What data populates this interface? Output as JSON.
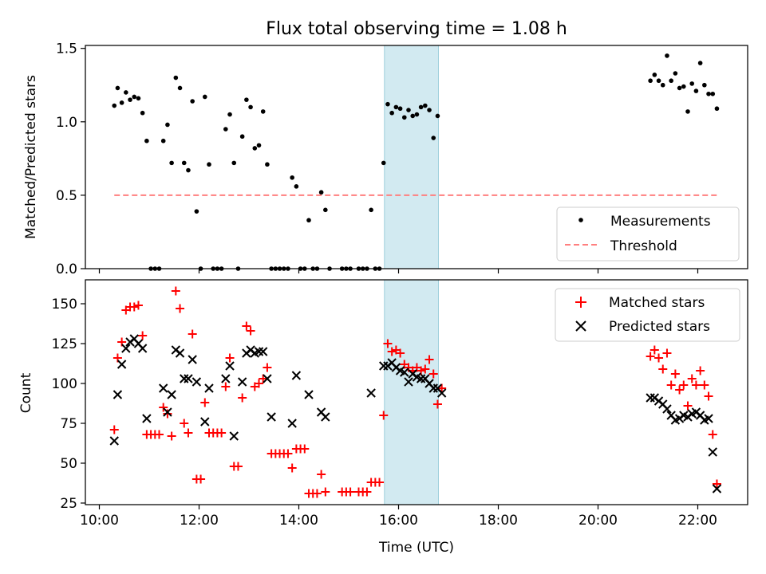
{
  "figure": {
    "title": "Flux total observing time = 1.08 h",
    "xlabel": "Time (UTC)"
  },
  "colors": {
    "measurement": "#000000",
    "threshold": "#ff7f7f",
    "matched": "#ff0000",
    "predicted": "#000000",
    "shade": "#add8e6"
  },
  "chart_data": [
    {
      "type": "scatter",
      "ylabel": "Matched/Predicted stars",
      "x_unit": "hours UTC",
      "xlim": [
        9.72,
        23.0
      ],
      "ylim": [
        0,
        1.52
      ],
      "yticks": [
        "0.0",
        "0.5",
        "1.0",
        "1.5"
      ],
      "ytick_values": [
        0,
        0.5,
        1.0,
        1.5
      ],
      "shaded_interval": [
        "15:43",
        "16:48"
      ],
      "legend_position": "lower right",
      "legend": [
        "Measurements",
        "Threshold"
      ],
      "threshold": {
        "name": "Threshold",
        "x": [
          "10:18",
          "22:24"
        ],
        "y": 0.5
      },
      "series": [
        {
          "name": "Measurements",
          "points": [
            [
              "10:18",
              1.11
            ],
            [
              "10:22",
              1.23
            ],
            [
              "10:27",
              1.13
            ],
            [
              "10:32",
              1.2
            ],
            [
              "10:37",
              1.15
            ],
            [
              "10:42",
              1.17
            ],
            [
              "10:47",
              1.16
            ],
            [
              "10:52",
              1.06
            ],
            [
              "10:57",
              0.87
            ],
            [
              "11:02",
              0.0
            ],
            [
              "11:07",
              0.0
            ],
            [
              "11:12",
              0.0
            ],
            [
              "11:17",
              0.87
            ],
            [
              "11:22",
              0.98
            ],
            [
              "11:27",
              0.72
            ],
            [
              "11:32",
              1.3
            ],
            [
              "11:37",
              1.23
            ],
            [
              "11:42",
              0.72
            ],
            [
              "11:47",
              0.67
            ],
            [
              "11:52",
              1.14
            ],
            [
              "11:57",
              0.39
            ],
            [
              "12:02",
              0.0
            ],
            [
              "12:07",
              1.17
            ],
            [
              "12:12",
              0.71
            ],
            [
              "12:17",
              0.0
            ],
            [
              "12:22",
              0.0
            ],
            [
              "12:27",
              0.0
            ],
            [
              "12:32",
              0.95
            ],
            [
              "12:37",
              1.05
            ],
            [
              "12:42",
              0.72
            ],
            [
              "12:47",
              0.0
            ],
            [
              "12:52",
              0.9
            ],
            [
              "12:57",
              1.15
            ],
            [
              "13:02",
              1.1
            ],
            [
              "13:07",
              0.82
            ],
            [
              "13:12",
              0.84
            ],
            [
              "13:17",
              1.07
            ],
            [
              "13:22",
              0.71
            ],
            [
              "13:27",
              0.0
            ],
            [
              "13:32",
              0.0
            ],
            [
              "13:37",
              0.0
            ],
            [
              "13:42",
              0.0
            ],
            [
              "13:47",
              0.0
            ],
            [
              "13:52",
              0.62
            ],
            [
              "13:57",
              0.56
            ],
            [
              "14:02",
              0.0
            ],
            [
              "14:07",
              0.0
            ],
            [
              "14:12",
              0.33
            ],
            [
              "14:17",
              0.0
            ],
            [
              "14:22",
              0.0
            ],
            [
              "14:27",
              0.52
            ],
            [
              "14:32",
              0.4
            ],
            [
              "14:37",
              0.0
            ],
            [
              "14:52",
              0.0
            ],
            [
              "14:57",
              0.0
            ],
            [
              "15:02",
              0.0
            ],
            [
              "15:12",
              0.0
            ],
            [
              "15:17",
              0.0
            ],
            [
              "15:22",
              0.0
            ],
            [
              "15:27",
              0.4
            ],
            [
              "15:32",
              0.0
            ],
            [
              "15:37",
              0.0
            ],
            [
              "15:42",
              0.72
            ],
            [
              "15:47",
              1.12
            ],
            [
              "15:52",
              1.06
            ],
            [
              "15:57",
              1.1
            ],
            [
              "16:02",
              1.09
            ],
            [
              "16:07",
              1.03
            ],
            [
              "16:12",
              1.08
            ],
            [
              "16:17",
              1.04
            ],
            [
              "16:22",
              1.05
            ],
            [
              "16:27",
              1.1
            ],
            [
              "16:32",
              1.11
            ],
            [
              "16:37",
              1.08
            ],
            [
              "16:42",
              0.89
            ],
            [
              "16:47",
              1.04
            ],
            [
              "21:03",
              1.28
            ],
            [
              "21:08",
              1.32
            ],
            [
              "21:13",
              1.28
            ],
            [
              "21:18",
              1.25
            ],
            [
              "21:23",
              1.45
            ],
            [
              "21:28",
              1.28
            ],
            [
              "21:33",
              1.33
            ],
            [
              "21:38",
              1.23
            ],
            [
              "21:43",
              1.24
            ],
            [
              "21:48",
              1.07
            ],
            [
              "21:53",
              1.26
            ],
            [
              "21:58",
              1.21
            ],
            [
              "22:03",
              1.4
            ],
            [
              "22:08",
              1.25
            ],
            [
              "22:13",
              1.19
            ],
            [
              "22:18",
              1.19
            ],
            [
              "22:23",
              1.09
            ]
          ]
        }
      ]
    },
    {
      "type": "scatter",
      "ylabel": "Count",
      "xlabel": "Time (UTC)",
      "x_unit": "hours UTC",
      "xlim": [
        9.72,
        23.0
      ],
      "ylim": [
        24,
        165
      ],
      "yticks": [
        "25",
        "50",
        "75",
        "100",
        "125",
        "150"
      ],
      "ytick_values": [
        25,
        50,
        75,
        100,
        125,
        150
      ],
      "xticks": [
        "10:00",
        "12:00",
        "14:00",
        "16:00",
        "18:00",
        "20:00",
        "22:00"
      ],
      "shaded_interval": [
        "15:43",
        "16:48"
      ],
      "legend_position": "upper right",
      "legend": [
        "Matched stars",
        "Predicted stars"
      ],
      "series": [
        {
          "name": "Matched stars",
          "marker": "+",
          "points": [
            [
              "10:18",
              71
            ],
            [
              "10:22",
              116
            ],
            [
              "10:27",
              126
            ],
            [
              "10:32",
              146
            ],
            [
              "10:37",
              148
            ],
            [
              "10:42",
              148
            ],
            [
              "10:47",
              149
            ],
            [
              "10:52",
              130
            ],
            [
              "10:57",
              68
            ],
            [
              "11:02",
              68
            ],
            [
              "11:07",
              68
            ],
            [
              "11:12",
              68
            ],
            [
              "11:17",
              85
            ],
            [
              "11:22",
              81
            ],
            [
              "11:27",
              67
            ],
            [
              "11:32",
              158
            ],
            [
              "11:37",
              147
            ],
            [
              "11:42",
              75
            ],
            [
              "11:47",
              69
            ],
            [
              "11:52",
              131
            ],
            [
              "11:57",
              40
            ],
            [
              "12:02",
              40
            ],
            [
              "12:07",
              88
            ],
            [
              "12:12",
              69
            ],
            [
              "12:17",
              69
            ],
            [
              "12:22",
              69
            ],
            [
              "12:27",
              69
            ],
            [
              "12:32",
              98
            ],
            [
              "12:37",
              116
            ],
            [
              "12:42",
              48
            ],
            [
              "12:47",
              48
            ],
            [
              "12:52",
              91
            ],
            [
              "12:57",
              136
            ],
            [
              "13:02",
              133
            ],
            [
              "13:07",
              98
            ],
            [
              "13:12",
              100
            ],
            [
              "13:17",
              103
            ],
            [
              "13:22",
              110
            ],
            [
              "13:27",
              56
            ],
            [
              "13:32",
              56
            ],
            [
              "13:37",
              56
            ],
            [
              "13:42",
              56
            ],
            [
              "13:47",
              56
            ],
            [
              "13:52",
              47
            ],
            [
              "13:57",
              59
            ],
            [
              "14:02",
              59
            ],
            [
              "14:07",
              59
            ],
            [
              "14:12",
              31
            ],
            [
              "14:17",
              31
            ],
            [
              "14:22",
              31
            ],
            [
              "14:27",
              43
            ],
            [
              "14:32",
              32
            ],
            [
              "14:52",
              32
            ],
            [
              "14:57",
              32
            ],
            [
              "15:02",
              32
            ],
            [
              "15:12",
              32
            ],
            [
              "15:17",
              32
            ],
            [
              "15:22",
              32
            ],
            [
              "15:27",
              38
            ],
            [
              "15:32",
              38
            ],
            [
              "15:37",
              38
            ],
            [
              "15:42",
              80
            ],
            [
              "15:47",
              125
            ],
            [
              "15:52",
              120
            ],
            [
              "15:57",
              121
            ],
            [
              "16:02",
              119
            ],
            [
              "16:07",
              112
            ],
            [
              "16:12",
              110
            ],
            [
              "16:17",
              108
            ],
            [
              "16:22",
              110
            ],
            [
              "16:27",
              108
            ],
            [
              "16:32",
              109
            ],
            [
              "16:37",
              115
            ],
            [
              "16:42",
              106
            ],
            [
              "16:47",
              87
            ],
            [
              "16:52",
              97
            ],
            [
              "21:03",
              117
            ],
            [
              "21:08",
              121
            ],
            [
              "21:13",
              116
            ],
            [
              "21:18",
              109
            ],
            [
              "21:23",
              119
            ],
            [
              "21:28",
              99
            ],
            [
              "21:33",
              106
            ],
            [
              "21:38",
              96
            ],
            [
              "21:43",
              99
            ],
            [
              "21:48",
              86
            ],
            [
              "21:53",
              103
            ],
            [
              "21:58",
              99
            ],
            [
              "22:03",
              108
            ],
            [
              "22:08",
              99
            ],
            [
              "22:13",
              92
            ],
            [
              "22:18",
              68
            ],
            [
              "22:23",
              37
            ]
          ]
        },
        {
          "name": "Predicted stars",
          "marker": "x",
          "points": [
            [
              "10:18",
              64
            ],
            [
              "10:22",
              93
            ],
            [
              "10:27",
              112
            ],
            [
              "10:32",
              122
            ],
            [
              "10:37",
              126
            ],
            [
              "10:42",
              128
            ],
            [
              "10:47",
              125
            ],
            [
              "10:52",
              122
            ],
            [
              "10:57",
              78
            ],
            [
              "11:17",
              97
            ],
            [
              "11:22",
              82
            ],
            [
              "11:27",
              93
            ],
            [
              "11:32",
              121
            ],
            [
              "11:37",
              119
            ],
            [
              "11:42",
              103
            ],
            [
              "11:47",
              103
            ],
            [
              "11:52",
              115
            ],
            [
              "11:57",
              101
            ],
            [
              "12:07",
              76
            ],
            [
              "12:12",
              97
            ],
            [
              "12:32",
              103
            ],
            [
              "12:37",
              111
            ],
            [
              "12:42",
              67
            ],
            [
              "12:52",
              101
            ],
            [
              "12:57",
              119
            ],
            [
              "13:02",
              121
            ],
            [
              "13:07",
              119
            ],
            [
              "13:12",
              120
            ],
            [
              "13:17",
              120
            ],
            [
              "13:22",
              103
            ],
            [
              "13:27",
              79
            ],
            [
              "13:52",
              75
            ],
            [
              "13:57",
              105
            ],
            [
              "14:12",
              93
            ],
            [
              "14:27",
              82
            ],
            [
              "14:32",
              79
            ],
            [
              "15:27",
              94
            ],
            [
              "15:42",
              111
            ],
            [
              "15:47",
              111
            ],
            [
              "15:52",
              113
            ],
            [
              "15:57",
              110
            ],
            [
              "16:02",
              108
            ],
            [
              "16:07",
              107
            ],
            [
              "16:12",
              101
            ],
            [
              "16:17",
              106
            ],
            [
              "16:22",
              104
            ],
            [
              "16:27",
              103
            ],
            [
              "16:32",
              103
            ],
            [
              "16:37",
              100
            ],
            [
              "16:42",
              97
            ],
            [
              "16:47",
              97
            ],
            [
              "16:52",
              94
            ],
            [
              "21:03",
              91
            ],
            [
              "21:08",
              91
            ],
            [
              "21:13",
              89
            ],
            [
              "21:18",
              87
            ],
            [
              "21:23",
              84
            ],
            [
              "21:28",
              80
            ],
            [
              "21:33",
              77
            ],
            [
              "21:38",
              78
            ],
            [
              "21:43",
              80
            ],
            [
              "21:48",
              79
            ],
            [
              "21:53",
              81
            ],
            [
              "21:58",
              82
            ],
            [
              "22:03",
              80
            ],
            [
              "22:08",
              77
            ],
            [
              "22:13",
              78
            ],
            [
              "22:18",
              57
            ],
            [
              "22:23",
              34
            ]
          ]
        }
      ]
    }
  ]
}
